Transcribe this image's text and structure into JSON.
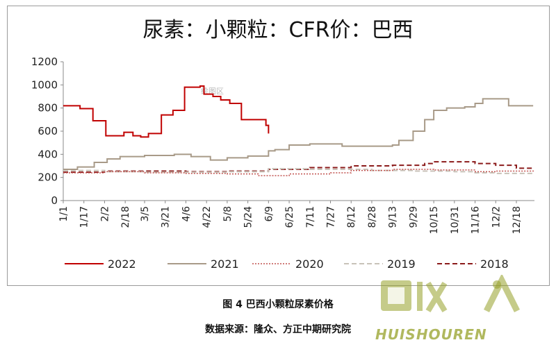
{
  "caption": "图 4 巴西小颗粒尿素价格",
  "source": "数据来源：隆众、方正中期研究院",
  "plot_area_label": "绘图区",
  "watermark": "HUISHOUREN",
  "watermark_cn": "回收人",
  "chart_data": {
    "type": "line",
    "title": "尿素：小颗粒：CFR价：巴西",
    "xlabel": "",
    "ylabel": "",
    "ylim": [
      0,
      1200
    ],
    "yticks": [
      0,
      200,
      400,
      600,
      800,
      1000,
      1200
    ],
    "xticks": [
      "1/1",
      "1/17",
      "2/2",
      "2/18",
      "3/5",
      "3/21",
      "4/6",
      "4/22",
      "5/8",
      "5/24",
      "6/9",
      "6/25",
      "7/11",
      "7/27",
      "8/12",
      "8/28",
      "9/13",
      "9/29",
      "10/15",
      "10/31",
      "11/16",
      "12/2",
      "12/18"
    ],
    "x_domain_days": [
      1,
      366
    ],
    "grid": false,
    "legend_position": "bottom",
    "series": [
      {
        "name": "2022",
        "color": "#c00000",
        "style": "solid",
        "width": 2,
        "x": [
          "1/1",
          "1/11",
          "1/14",
          "1/21",
          "1/24",
          "1/31",
          "2/3",
          "2/9",
          "2/17",
          "2/19",
          "2/24",
          "3/2",
          "3/8",
          "3/17",
          "3/18",
          "3/25",
          "3/27",
          "4/3",
          "4/5",
          "4/10",
          "4/17",
          "4/20",
          "4/27",
          "5/3",
          "5/5",
          "5/10",
          "5/17",
          "5/19",
          "6/7",
          "6/9"
        ],
        "y": [
          820,
          820,
          795,
          795,
          690,
          690,
          560,
          560,
          590,
          590,
          560,
          550,
          580,
          580,
          740,
          740,
          780,
          780,
          980,
          980,
          990,
          920,
          900,
          870,
          870,
          840,
          840,
          700,
          650,
          580
        ]
      },
      {
        "name": "2021",
        "color": "#a89a88",
        "style": "solid",
        "width": 2,
        "x": [
          "1/1",
          "1/12",
          "1/25",
          "2/4",
          "2/14",
          "3/5",
          "3/28",
          "4/10",
          "4/25",
          "5/8",
          "5/24",
          "6/9",
          "6/14",
          "6/25",
          "7/11",
          "7/27",
          "8/5",
          "8/28",
          "9/13",
          "9/18",
          "9/29",
          "10/8",
          "10/15",
          "10/25",
          "11/8",
          "11/16",
          "11/22",
          "12/8",
          "12/12",
          "12/31"
        ],
        "y": [
          270,
          290,
          330,
          360,
          380,
          390,
          400,
          380,
          350,
          370,
          385,
          430,
          440,
          480,
          490,
          490,
          470,
          470,
          480,
          520,
          600,
          700,
          780,
          800,
          810,
          840,
          880,
          880,
          820,
          820
        ]
      },
      {
        "name": "2020",
        "color": "#c0504d",
        "style": "dotted",
        "width": 1.5,
        "x": [
          "1/1",
          "2/2",
          "3/5",
          "4/6",
          "5/8",
          "6/1",
          "6/25",
          "7/27",
          "8/12",
          "9/13",
          "10/15",
          "11/16",
          "12/2",
          "12/31"
        ],
        "y": [
          240,
          250,
          240,
          235,
          230,
          215,
          230,
          240,
          260,
          270,
          265,
          250,
          255,
          260
        ]
      },
      {
        "name": "2019",
        "color": "#c8c2b8",
        "style": "dashed",
        "width": 2,
        "x": [
          "1/1",
          "2/2",
          "3/5",
          "4/6",
          "5/8",
          "6/9",
          "7/11",
          "8/12",
          "8/28",
          "9/29",
          "10/31",
          "11/16",
          "12/2",
          "12/31"
        ],
        "y": [
          260,
          250,
          245,
          245,
          250,
          275,
          270,
          270,
          260,
          255,
          250,
          240,
          235,
          235
        ]
      },
      {
        "name": "2018",
        "color": "#8b1a1a",
        "style": "dashed",
        "width": 2,
        "x": [
          "1/1",
          "2/2",
          "3/5",
          "4/6",
          "5/8",
          "6/9",
          "7/11",
          "8/12",
          "9/13",
          "10/8",
          "10/15",
          "11/16",
          "12/2",
          "12/18",
          "12/31"
        ],
        "y": [
          245,
          255,
          255,
          250,
          255,
          270,
          285,
          300,
          305,
          320,
          335,
          320,
          305,
          280,
          270
        ]
      }
    ]
  }
}
